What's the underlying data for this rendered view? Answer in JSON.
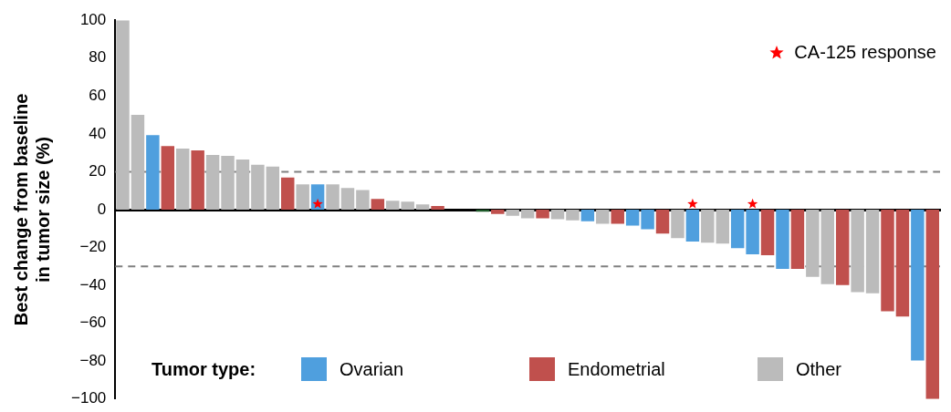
{
  "chart_data": {
    "type": "bar",
    "ylabel": "Best change from baseline in tumor size (%)",
    "legend_title": "Tumor type:",
    "legend": "bottom",
    "ylim": [
      -100,
      100
    ],
    "yticks": [
      -100,
      -80,
      -60,
      -40,
      -20,
      0,
      20,
      40,
      60,
      80,
      100
    ],
    "grid": false,
    "categories": [
      null,
      null,
      null,
      null,
      null,
      null,
      null,
      null,
      null,
      null,
      null,
      null,
      null,
      null,
      null,
      null,
      null,
      null,
      null,
      null,
      null,
      null,
      null,
      null,
      null,
      null,
      null,
      null,
      null,
      null,
      null,
      null,
      null,
      null,
      null,
      null,
      null,
      null,
      null,
      null,
      null,
      null,
      null,
      null,
      null,
      null,
      null,
      null,
      null,
      null,
      null,
      null,
      null,
      null,
      null
    ],
    "series": [
      {
        "name": "Ovarian",
        "color": "#4f9fde",
        "values": [
          null,
          null,
          39.3,
          null,
          null,
          null,
          null,
          null,
          null,
          null,
          null,
          null,
          null,
          13.3,
          null,
          null,
          null,
          null,
          null,
          null,
          null,
          null,
          null,
          null,
          null,
          null,
          null,
          null,
          null,
          null,
          null,
          -6.1,
          null,
          null,
          -8.4,
          -10.3,
          null,
          null,
          -16.9,
          null,
          null,
          -20.3,
          -23.6,
          null,
          -31.3,
          null,
          null,
          null,
          null,
          null,
          null,
          null,
          null,
          -79.6,
          null
        ]
      },
      {
        "name": "Endometrial",
        "color": "#c0504d",
        "values": [
          null,
          null,
          null,
          33.6,
          null,
          31.3,
          null,
          null,
          null,
          null,
          null,
          17,
          null,
          null,
          null,
          null,
          null,
          5.7,
          null,
          null,
          null,
          1.9,
          null,
          null,
          null,
          -2.3,
          null,
          null,
          -4.6,
          null,
          null,
          null,
          null,
          -7.4,
          null,
          null,
          -12.6,
          null,
          null,
          null,
          null,
          null,
          null,
          -24.1,
          null,
          -31.3,
          null,
          null,
          -39.8,
          null,
          null,
          -53.6,
          -56.4,
          null,
          -100
        ]
      },
      {
        "name": "Other",
        "color": "#bbbbbb",
        "values": [
          100,
          50,
          null,
          null,
          32.2,
          null,
          28.9,
          28.4,
          26.5,
          23.7,
          22.7,
          null,
          13.3,
          null,
          13.3,
          11.4,
          10.4,
          null,
          4.7,
          4.2,
          2.8,
          null,
          null,
          null,
          null,
          null,
          -3.2,
          -4.6,
          null,
          -5.1,
          -5.6,
          null,
          -7.4,
          null,
          null,
          null,
          null,
          -15,
          null,
          -17.4,
          -17.9,
          null,
          null,
          null,
          null,
          null,
          -35.5,
          -39.3,
          null,
          -43.6,
          -44.1,
          null,
          null,
          null,
          null
        ]
      },
      {
        "color": "#1e5a2a",
        "values": [
          null,
          null,
          null,
          null,
          null,
          null,
          null,
          null,
          null,
          null,
          null,
          null,
          null,
          null,
          null,
          null,
          null,
          null,
          null,
          null,
          null,
          null,
          null,
          null,
          -1.1,
          null,
          null,
          null,
          null,
          null,
          null,
          null,
          null,
          null,
          null,
          null,
          null,
          null,
          null,
          null,
          null,
          null,
          null,
          null,
          null,
          null,
          null,
          null,
          null,
          null,
          null,
          null,
          null,
          null,
          null
        ]
      },
      {
        "name": "CA-125 response",
        "type": "scatter",
        "marker": "star",
        "color": "#ff0000",
        "values": [
          null,
          null,
          null,
          null,
          null,
          null,
          null,
          null,
          null,
          null,
          null,
          null,
          null,
          3,
          null,
          null,
          null,
          null,
          null,
          null,
          null,
          null,
          null,
          null,
          null,
          null,
          null,
          null,
          null,
          null,
          null,
          null,
          null,
          null,
          null,
          null,
          null,
          null,
          3,
          null,
          null,
          null,
          3,
          null,
          null,
          null,
          null,
          null,
          null,
          null,
          null,
          null,
          null,
          null,
          null
        ]
      }
    ],
    "ref_lines": [
      {
        "axis": "y",
        "value": 20,
        "color": "#808080",
        "line_style": "dashed"
      },
      {
        "axis": "y",
        "value": -30,
        "color": "#808080",
        "line_style": "dashed"
      }
    ]
  }
}
